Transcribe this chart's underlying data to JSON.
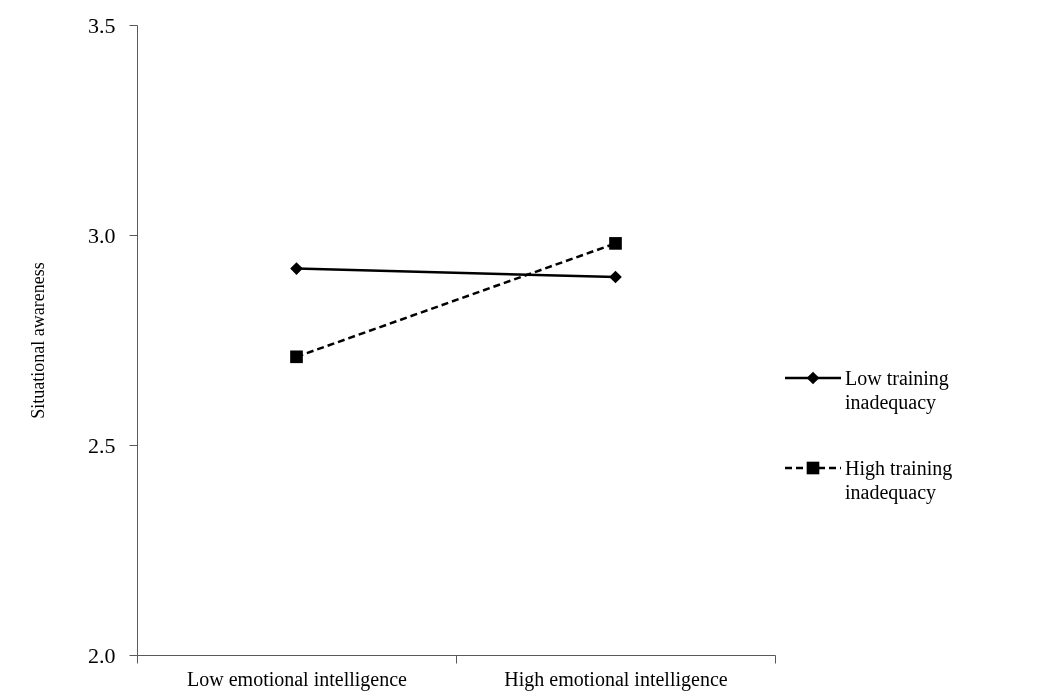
{
  "chart_data": {
    "type": "line",
    "ylabel": "Situational awareness",
    "categories": [
      "Low emotional intelligence",
      "High emotional intelligence"
    ],
    "series": [
      {
        "name": "Low training inadequacy",
        "color": "#000000",
        "values": [
          2.92,
          2.9
        ],
        "marker": "diamond",
        "line_style": "solid"
      },
      {
        "name": "High training inadequacy",
        "color": "#000000",
        "values": [
          2.71,
          2.98
        ],
        "marker": "square",
        "line_style": "dashed"
      }
    ],
    "ylim": [
      2.0,
      3.5
    ],
    "yticks": [
      {
        "value": 2,
        "label": "2.0"
      },
      2.5,
      {
        "value": 3,
        "label": "3.0"
      },
      3.5
    ],
    "legend": "right"
  }
}
